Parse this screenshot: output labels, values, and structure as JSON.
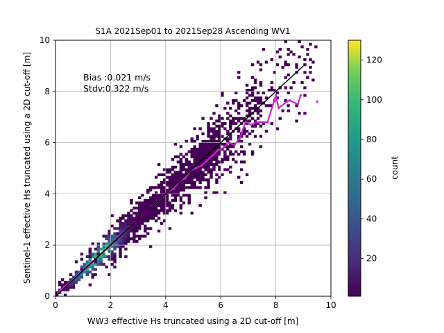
{
  "chart_data": {
    "type": "heatmap",
    "title": "S1A 2021Sep01 to 2021Sep28 Ascending WV1",
    "xlabel": "WW3 effective Hs truncated using a 2D cut-off [m]",
    "ylabel": "Sentinel-1 effective Hs truncated using a 2D cut-off [m]",
    "xlim": [
      0,
      10
    ],
    "ylim": [
      0,
      10
    ],
    "xticks": [
      "0",
      "2",
      "4",
      "6",
      "8",
      "10"
    ],
    "yticks": [
      "0",
      "2",
      "4",
      "6",
      "8",
      "10"
    ],
    "grid": true,
    "annotations": [
      "Bias :0.021 m/s",
      "Stdv:0.322 m/s"
    ],
    "colorbar": {
      "label": "count",
      "range": [
        1,
        130
      ],
      "ticks": [
        "20",
        "40",
        "60",
        "80",
        "100",
        "120"
      ],
      "colormap": "viridis"
    },
    "reference_line": {
      "x": [
        0,
        9
      ],
      "y": [
        0,
        9
      ],
      "color": "#000000"
    },
    "binned_mean": {
      "color": "#cc22cc",
      "x": [
        0.1,
        0.3,
        0.5,
        0.7,
        0.9,
        1.1,
        1.3,
        1.5,
        1.7,
        1.9,
        2.1,
        2.3,
        2.5,
        2.7,
        2.9,
        3.1,
        3.3,
        3.5,
        3.7,
        3.9,
        4.1,
        4.3,
        4.5,
        4.7,
        4.9,
        5.1,
        5.3,
        5.5,
        5.7,
        5.9,
        6.1,
        6.3,
        6.5,
        6.7,
        6.9,
        7.1,
        7.3,
        7.5,
        7.7,
        8.0,
        8.1,
        8.4,
        8.5,
        8.8,
        8.9
      ],
      "y": [
        0.15,
        0.35,
        0.52,
        0.72,
        0.92,
        1.1,
        1.3,
        1.5,
        1.7,
        1.9,
        2.1,
        2.3,
        2.5,
        2.7,
        2.9,
        3.1,
        3.3,
        3.5,
        3.7,
        3.9,
        4.1,
        4.2,
        4.5,
        4.6,
        4.9,
        5.0,
        5.1,
        5.3,
        5.5,
        5.7,
        5.8,
        6.0,
        5.9,
        6.2,
        6.8,
        6.7,
        6.8,
        6.8,
        6.8,
        7.85,
        7.35,
        7.6,
        7.65,
        7.5,
        7.85
      ]
    }
  }
}
